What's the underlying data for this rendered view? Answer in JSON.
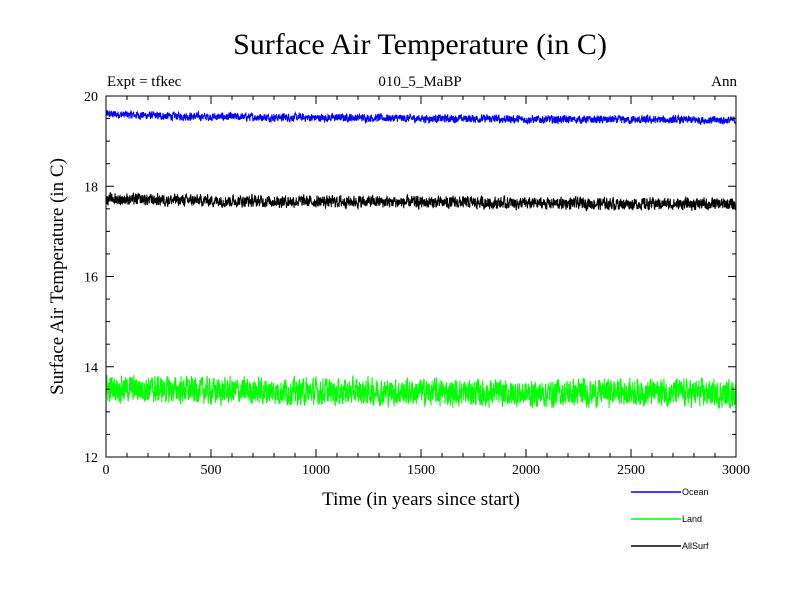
{
  "header": {
    "title": "Surface Air Temperature (in C)",
    "subtitle": "010_5_MaBP",
    "left_note": "Expt = tfkec",
    "right_note": "Ann"
  },
  "chart_data": {
    "type": "line",
    "title": "Surface Air Temperature (in C)",
    "xlabel": "Time (in years since start)",
    "ylabel": "Surface Air Temperature (in C)",
    "xlim": [
      0,
      3000
    ],
    "ylim": [
      12,
      20
    ],
    "xticks": [
      "0",
      "500",
      "1000",
      "1500",
      "2000",
      "2500",
      "3000"
    ],
    "yticks": [
      "12",
      "14",
      "16",
      "18",
      "20"
    ],
    "grid": false,
    "legend_position": "bottom-right, outside plot",
    "series": [
      {
        "name": "Ocean",
        "color": "#0000ff",
        "mean": 19.5,
        "noise_amplitude": 0.12,
        "x": [
          0,
          250,
          500,
          750,
          1000,
          1250,
          1500,
          1750,
          2000,
          2250,
          2500,
          2750,
          3000
        ],
        "values": [
          19.6,
          19.56,
          19.54,
          19.53,
          19.52,
          19.52,
          19.5,
          19.5,
          19.48,
          19.48,
          19.47,
          19.47,
          19.46
        ]
      },
      {
        "name": "Land",
        "color": "#00ff00",
        "mean": 13.45,
        "noise_amplitude": 0.4,
        "x": [
          0,
          250,
          500,
          750,
          1000,
          1250,
          1500,
          1750,
          2000,
          2250,
          2500,
          2750,
          3000
        ],
        "values": [
          13.52,
          13.5,
          13.47,
          13.46,
          13.45,
          13.45,
          13.44,
          13.42,
          13.4,
          13.42,
          13.45,
          13.42,
          13.4
        ]
      },
      {
        "name": "AllSurf",
        "color": "#000000",
        "mean": 17.65,
        "noise_amplitude": 0.18,
        "x": [
          0,
          250,
          500,
          750,
          1000,
          1250,
          1500,
          1750,
          2000,
          2250,
          2500,
          2750,
          3000
        ],
        "values": [
          17.72,
          17.7,
          17.68,
          17.67,
          17.66,
          17.66,
          17.64,
          17.64,
          17.62,
          17.62,
          17.61,
          17.61,
          17.6
        ]
      }
    ]
  }
}
